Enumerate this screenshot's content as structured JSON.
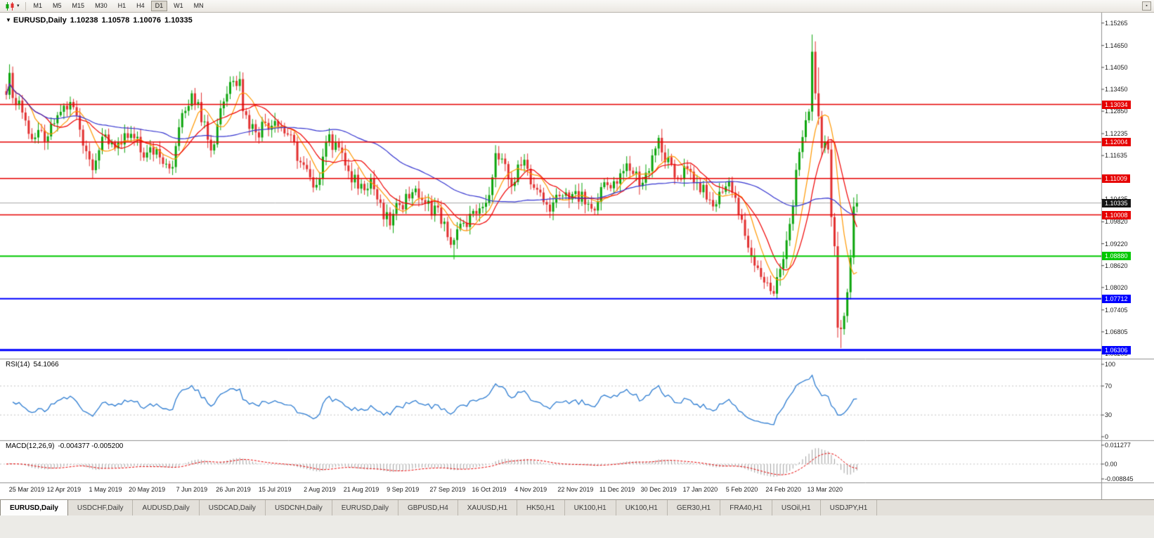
{
  "toolbar": {
    "chart_type_button": {
      "icon": "candlestick-chart-icon",
      "caret": "▾"
    },
    "timeframes": [
      "M1",
      "M5",
      "M15",
      "M30",
      "H1",
      "H4",
      "D1",
      "W1",
      "MN"
    ],
    "active_timeframe": "D1",
    "corner_icon": "▪"
  },
  "chart_header": {
    "collapse_icon": "▼",
    "symbol_period": "EURUSD,Daily",
    "open": "1.10238",
    "high": "1.10578",
    "low": "1.10076",
    "close": "1.10335"
  },
  "price_axis": {
    "ticks": [
      "1.15265",
      "1.14650",
      "1.14050",
      "1.13450",
      "1.12850",
      "1.12235",
      "1.11635",
      "1.10435",
      "1.09820",
      "1.09220",
      "1.08620",
      "1.08020",
      "1.07405",
      "1.06805",
      "1.06205"
    ]
  },
  "hlines": [
    {
      "value": 1.13034,
      "label": "1.13034",
      "color": "#e60000",
      "width": 1.5
    },
    {
      "value": 1.12004,
      "label": "1.12004",
      "color": "#e60000",
      "width": 1.5
    },
    {
      "value": 1.11009,
      "label": "1.11009",
      "color": "#e60000",
      "width": 1.5
    },
    {
      "value": 1.10008,
      "label": "1.10008",
      "color": "#e60000",
      "width": 1.5
    },
    {
      "value": 1.0888,
      "label": "1.08880",
      "color": "#00c800",
      "width": 2
    },
    {
      "value": 1.07712,
      "label": "1.07712",
      "color": "#0000ff",
      "width": 2
    },
    {
      "value": 1.06306,
      "label": "1.06306",
      "color": "#0000ff",
      "width": 3
    }
  ],
  "current_price": {
    "value": 1.10335,
    "label": "1.10335",
    "badge_bg": "#141414",
    "line_color": "#a8a8a8"
  },
  "indicators": {
    "rsi": {
      "name_label": "RSI(14)",
      "value_label": "54.1066",
      "period": 14,
      "levels": [
        "100",
        "70",
        "30",
        "0"
      ],
      "level_lines": [
        70,
        30
      ],
      "line_color": "#2e7dd2",
      "range": [
        0,
        100
      ]
    },
    "macd": {
      "name_label": "MACD(12,26,9)",
      "values_label": "-0.004377 -0.005200",
      "params": [
        12,
        26,
        9
      ],
      "axis": [
        "0.011277",
        "0.00",
        "-0.008845"
      ],
      "range": [
        -0.008845,
        0.011277
      ],
      "hist_color": "#a0a0a0",
      "signal_color": "#e60000"
    }
  },
  "date_axis": {
    "labels": [
      {
        "i": 4,
        "text": "25 Mar 2019"
      },
      {
        "i": 18,
        "text": "12 Apr 2019"
      },
      {
        "i": 31,
        "text": "1 May 2019"
      },
      {
        "i": 44,
        "text": "20 May 2019"
      },
      {
        "i": 58,
        "text": "7 Jun 2019"
      },
      {
        "i": 71,
        "text": "26 Jun 2019"
      },
      {
        "i": 84,
        "text": "15 Jul 2019"
      },
      {
        "i": 98,
        "text": "2 Aug 2019"
      },
      {
        "i": 111,
        "text": "21 Aug 2019"
      },
      {
        "i": 124,
        "text": "9 Sep 2019"
      },
      {
        "i": 138,
        "text": "27 Sep 2019"
      },
      {
        "i": 151,
        "text": "16 Oct 2019"
      },
      {
        "i": 164,
        "text": "4 Nov 2019"
      },
      {
        "i": 178,
        "text": "22 Nov 2019"
      },
      {
        "i": 191,
        "text": "11 Dec 2019"
      },
      {
        "i": 204,
        "text": "30 Dec 2019"
      },
      {
        "i": 217,
        "text": "17 Jan 2020"
      },
      {
        "i": 230,
        "text": "5 Feb 2020"
      },
      {
        "i": 243,
        "text": "24 Feb 2020"
      },
      {
        "i": 256,
        "text": "13 Mar 2020"
      }
    ]
  },
  "tabs": {
    "active": 0,
    "items": [
      "EURUSD,Daily",
      "USDCHF,Daily",
      "AUDUSD,Daily",
      "USDCAD,Daily",
      "USDCNH,Daily",
      "EURUSD,Daily",
      "GBPUSD,H4",
      "XAUUSD,H1",
      "HK50,H1",
      "UK100,H1",
      "UK100,H1",
      "GER30,H1",
      "FRA40,H1",
      "USOil,H1",
      "USDJPY,H1"
    ]
  },
  "chart_data": {
    "type": "candlestick",
    "symbol": "EURUSD",
    "period": "Daily",
    "candle_count": 267,
    "y_axis_range": [
      1.0607,
      1.1555
    ],
    "up_color": "#0ca50c",
    "down_color": "#e23030",
    "moving_averages": [
      {
        "period": 8,
        "color": "#ff9800"
      },
      {
        "period": 13,
        "color": "#f00000"
      },
      {
        "period": 50,
        "color": "#3535d0"
      }
    ],
    "last_candle": {
      "open": 1.10238,
      "high": 1.10578,
      "low": 1.10076,
      "close": 1.10335
    },
    "close_anchors": [
      [
        0,
        1.133
      ],
      [
        1,
        1.139
      ],
      [
        3,
        1.1302
      ],
      [
        4,
        1.1314
      ],
      [
        7,
        1.1223
      ],
      [
        9,
        1.1213
      ],
      [
        13,
        1.1216
      ],
      [
        16,
        1.1274
      ],
      [
        18,
        1.13
      ],
      [
        21,
        1.1296
      ],
      [
        26,
        1.1153
      ],
      [
        28,
        1.115
      ],
      [
        30,
        1.1215
      ],
      [
        33,
        1.12
      ],
      [
        36,
        1.1194
      ],
      [
        39,
        1.1223
      ],
      [
        43,
        1.1158
      ],
      [
        47,
        1.1181
      ],
      [
        52,
        1.1132
      ],
      [
        54,
        1.1241
      ],
      [
        58,
        1.1334
      ],
      [
        60,
        1.131
      ],
      [
        63,
        1.1207
      ],
      [
        65,
        1.1194
      ],
      [
        67,
        1.1293
      ],
      [
        70,
        1.1365
      ],
      [
        73,
        1.1373
      ],
      [
        74,
        1.1285
      ],
      [
        78,
        1.1227
      ],
      [
        81,
        1.1253
      ],
      [
        84,
        1.1258
      ],
      [
        88,
        1.1221
      ],
      [
        92,
        1.1145
      ],
      [
        96,
        1.1076
      ],
      [
        97,
        1.1083
      ],
      [
        100,
        1.12
      ],
      [
        103,
        1.12
      ],
      [
        105,
        1.1171
      ],
      [
        108,
        1.109
      ],
      [
        111,
        1.1086
      ],
      [
        114,
        1.1101
      ],
      [
        118,
        1.0989
      ],
      [
        120,
        1.0972
      ],
      [
        123,
        1.1028
      ],
      [
        127,
        1.1063
      ],
      [
        128,
        1.1073
      ],
      [
        131,
        1.1031
      ],
      [
        135,
        1.1021
      ],
      [
        138,
        1.094
      ],
      [
        140,
        1.0932
      ],
      [
        143,
        1.0979
      ],
      [
        147,
        1.1004
      ],
      [
        150,
        1.1034
      ],
      [
        153,
        1.117
      ],
      [
        158,
        1.108
      ],
      [
        162,
        1.1152
      ],
      [
        165,
        1.1075
      ],
      [
        170,
        1.101
      ],
      [
        173,
        1.1052
      ],
      [
        177,
        1.1058
      ],
      [
        183,
        1.1018
      ],
      [
        186,
        1.1077
      ],
      [
        190,
        1.1093
      ],
      [
        193,
        1.1121
      ],
      [
        196,
        1.1113
      ],
      [
        199,
        1.1089
      ],
      [
        204,
        1.1212
      ],
      [
        205,
        1.1172
      ],
      [
        209,
        1.1103
      ],
      [
        213,
        1.1127
      ],
      [
        216,
        1.109
      ],
      [
        221,
        1.1024
      ],
      [
        226,
        1.1093
      ],
      [
        229,
        1.1
      ],
      [
        232,
        1.0911
      ],
      [
        236,
        1.0831
      ],
      [
        240,
        1.0785
      ],
      [
        242,
        1.0853
      ],
      [
        246,
        1.1026
      ],
      [
        248,
        1.1173
      ],
      [
        251,
        1.1284
      ],
      [
        252,
        1.1448
      ],
      [
        254,
        1.1271
      ],
      [
        255,
        1.1184
      ],
      [
        257,
        1.118
      ],
      [
        258,
        1.0995
      ],
      [
        259,
        1.0915
      ],
      [
        260,
        1.0692
      ],
      [
        261,
        1.0688
      ],
      [
        262,
        1.0724
      ],
      [
        263,
        1.0789
      ],
      [
        264,
        1.0884
      ],
      [
        265,
        1.10238
      ],
      [
        266,
        1.10335
      ]
    ],
    "wick_overrides": {
      "140": {
        "low": 1.0879
      },
      "240": {
        "low": 1.0778
      },
      "252": {
        "high": 1.1495
      },
      "254": {
        "high": 1.1405
      },
      "261": {
        "low": 1.0636
      },
      "266": {
        "high": 1.10578,
        "low": 1.10076
      }
    }
  }
}
